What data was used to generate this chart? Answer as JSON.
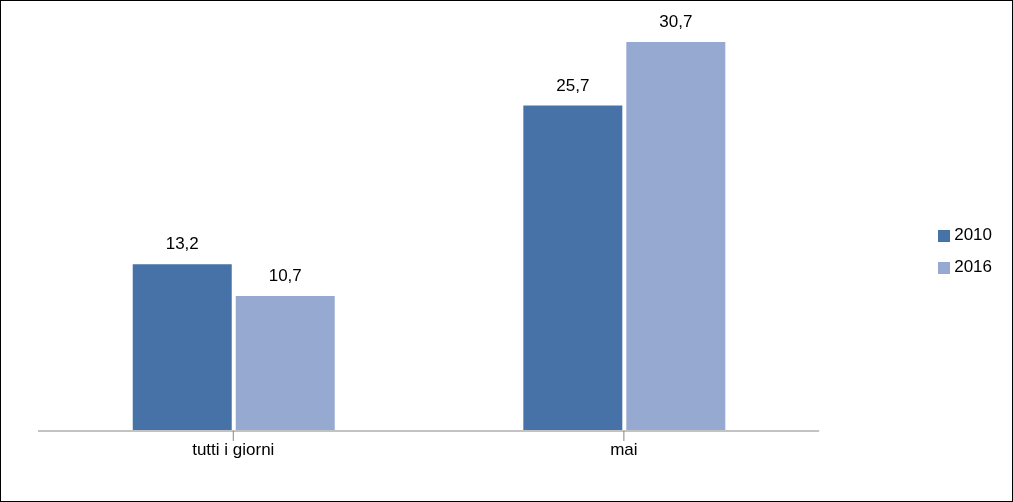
{
  "chart_data": {
    "type": "bar",
    "categories": [
      "tutti i giorni",
      "mai"
    ],
    "series": [
      {
        "name": "2010",
        "color": "#4672a8",
        "values": [
          13.2,
          25.7
        ],
        "value_labels": [
          "13,2",
          "25,7"
        ]
      },
      {
        "name": "2016",
        "color": "#95a9d1",
        "values": [
          10.7,
          30.7
        ],
        "value_labels": [
          "10,7",
          "30,7"
        ]
      }
    ],
    "legend": "right"
  }
}
